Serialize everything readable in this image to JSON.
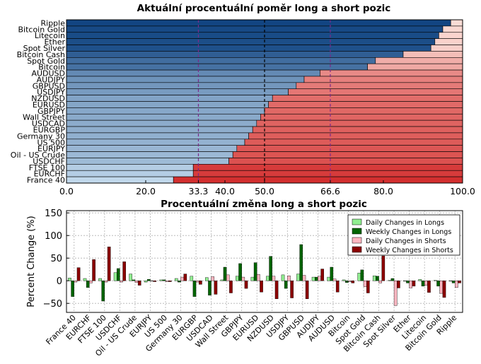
{
  "chart_data": [
    {
      "type": "bar",
      "orientation": "horizontal",
      "stacked": true,
      "title": "Aktuální procentuální poměr long a short pozic",
      "categories": [
        "Ripple",
        "Bitcoin Gold",
        "Litecoin",
        "Ether",
        "Spot Silver",
        "Bitcoin Cash",
        "Spot Gold",
        "Bitcoin",
        "AUDUSD",
        "AUDJPY",
        "GBPUSD",
        "USDJPY",
        "NZDUSD",
        "EURUSD",
        "GBPJPY",
        "Wall Street",
        "USDCAD",
        "EURGBP",
        "Germany 30",
        "US 500",
        "EURJPY",
        "Oil - US Crude",
        "USDCHF",
        "FTSE 100",
        "EURCHF",
        "France 40"
      ],
      "series": [
        {
          "values": [
            97,
            95,
            94,
            93,
            92,
            85,
            78,
            76,
            64,
            60,
            58,
            56,
            52,
            51,
            50,
            49,
            48,
            47,
            46,
            45,
            43,
            42,
            41,
            32,
            32,
            27
          ]
        }
      ],
      "xlim": [
        0,
        100
      ],
      "xticks": [
        "0.0",
        "20.0",
        "33.3",
        "40.0",
        "50.0",
        "66.6",
        "80.0",
        "100.0"
      ],
      "reference_lines": [
        33.3,
        50.0,
        66.6
      ],
      "colors": {
        "long_dark": "#0a3f7e",
        "long_light": "#c6dcee",
        "short_light": "#fde3dc",
        "short_dark": "#d22a2a",
        "reference": "#7b2a8a"
      }
    },
    {
      "type": "bar",
      "title": "Procentuální změna long a short pozic",
      "ylabel": "Percent Change (%)",
      "ylim": [
        -70,
        155
      ],
      "yticks": [
        "150",
        "100",
        "50",
        "0",
        "−50"
      ],
      "grid": true,
      "legend_position": "top-right",
      "categories": [
        "France 40",
        "EURCHF",
        "FTSE 100",
        "USDCHF",
        "Oil - US Crude",
        "EURJPY",
        "US 500",
        "Germany 30",
        "EURGBP",
        "USDCAD",
        "Wall Street",
        "GBPJPY",
        "EURUSD",
        "NZDUSD",
        "USDJPY",
        "GBPUSD",
        "AUDJPY",
        "AUDUSD",
        "Bitcoin",
        "Spot Gold",
        "Bitcoin Cash",
        "Spot Silver",
        "Ether",
        "Litecoin",
        "Bitcoin Gold",
        "Ripple"
      ],
      "series": [
        {
          "name": "Daily Changes in Longs",
          "color": "#90ee90",
          "values": [
            6,
            5,
            5,
            18,
            15,
            -3,
            2,
            5,
            10,
            7,
            2,
            10,
            8,
            10,
            13,
            15,
            8,
            8,
            2,
            17,
            11,
            1,
            -1,
            3,
            1,
            0
          ]
        },
        {
          "name": "Weekly Changes in Longs",
          "color": "#006400",
          "values": [
            -35,
            -15,
            -45,
            27,
            2,
            3,
            2,
            -3,
            -35,
            -32,
            30,
            38,
            40,
            54,
            -17,
            80,
            8,
            30,
            -4,
            24,
            10,
            5,
            -5,
            -12,
            -12,
            -5
          ]
        },
        {
          "name": "Daily Changes in Shorts",
          "color": "#ffb6c1",
          "values": [
            -3,
            -5,
            -3,
            -3,
            -4,
            0,
            -2,
            8,
            -3,
            9,
            13,
            8,
            14,
            10,
            11,
            12,
            10,
            4,
            -2,
            -13,
            -5,
            -55,
            -16,
            -10,
            -28,
            -15
          ]
        },
        {
          "name": "Weekly Changes in Shorts",
          "color": "#8b0000",
          "values": [
            29,
            47,
            75,
            42,
            -10,
            -2,
            -2,
            15,
            -8,
            -30,
            -27,
            -17,
            -25,
            -40,
            -38,
            -40,
            26,
            -25,
            -5,
            -27,
            55,
            -16,
            -12,
            -26,
            -37,
            -5
          ]
        }
      ]
    }
  ]
}
